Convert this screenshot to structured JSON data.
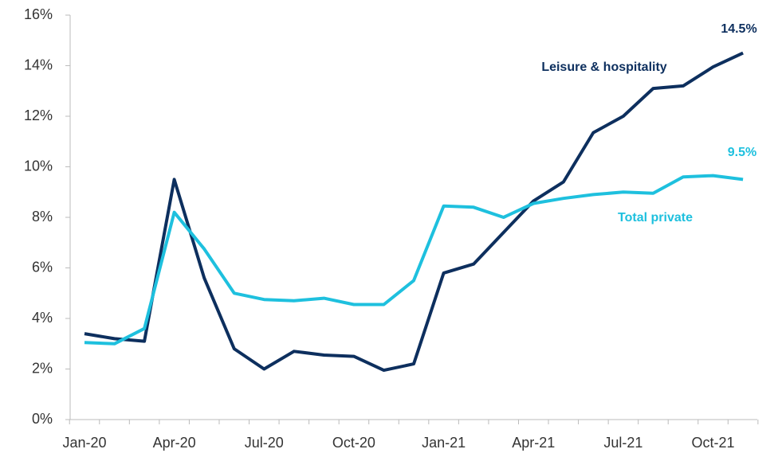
{
  "chart_data": {
    "type": "line",
    "categories": [
      "Jan-20",
      null,
      null,
      "Apr-20",
      null,
      null,
      "Jul-20",
      null,
      null,
      "Oct-20",
      null,
      null,
      "Jan-21",
      null,
      null,
      "Apr-21",
      null,
      null,
      "Jul-21",
      null,
      null,
      "Oct-21",
      null
    ],
    "series": [
      {
        "name": "Leisure & hospitality",
        "color": "#0d2f5e",
        "values": [
          3.4,
          3.2,
          3.1,
          9.5,
          5.6,
          2.8,
          2.0,
          2.7,
          2.55,
          2.5,
          1.95,
          2.2,
          5.8,
          6.15,
          7.4,
          8.65,
          9.4,
          11.35,
          12.0,
          13.1,
          13.2,
          13.95,
          14.5
        ],
        "value_labels": [
          null,
          null,
          null,
          null,
          null,
          null,
          null,
          null,
          null,
          null,
          null,
          null,
          null,
          null,
          null,
          null,
          null,
          null,
          null,
          null,
          null,
          null,
          "14.5%"
        ]
      },
      {
        "name": "Total private",
        "color": "#1ec0de",
        "values": [
          3.05,
          3.0,
          3.6,
          8.2,
          6.75,
          5.0,
          4.75,
          4.7,
          4.8,
          4.55,
          4.55,
          5.5,
          8.45,
          8.4,
          8.0,
          8.55,
          8.75,
          8.9,
          9.0,
          8.95,
          9.6,
          9.65,
          9.5
        ],
        "value_labels": [
          null,
          null,
          null,
          null,
          null,
          null,
          null,
          null,
          null,
          null,
          null,
          null,
          null,
          null,
          null,
          null,
          null,
          null,
          null,
          null,
          null,
          null,
          "9.5%"
        ]
      }
    ],
    "ylim": [
      0,
      16
    ],
    "yticks": [
      {
        "value": 0,
        "label": "0%"
      },
      {
        "value": 2,
        "label": "2%"
      },
      {
        "value": 4,
        "label": "4%"
      },
      {
        "value": 6,
        "label": "6%"
      },
      {
        "value": 8,
        "label": "8%"
      },
      {
        "value": 10,
        "label": "10%"
      },
      {
        "value": 12,
        "label": "12%"
      },
      {
        "value": 14,
        "label": "14%"
      },
      {
        "value": 16,
        "label": "16%"
      }
    ],
    "grid": false
  }
}
